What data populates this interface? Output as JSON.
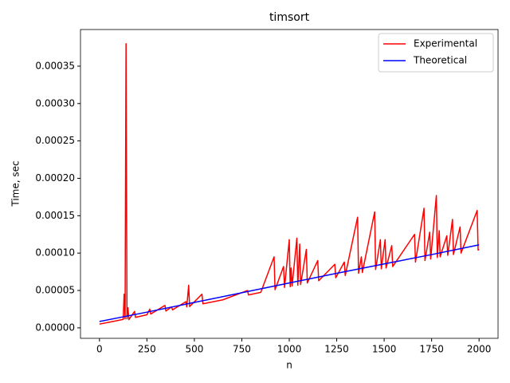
{
  "chart_data": {
    "type": "line",
    "title": "timsort",
    "x_label": "n",
    "y_label": "Time, sec",
    "xlim": [
      -100,
      2100
    ],
    "ylim": [
      -1.4e-05,
      0.000399
    ],
    "xticks": [
      0,
      250,
      500,
      750,
      1000,
      1250,
      1500,
      1750,
      2000
    ],
    "yticks": [
      {
        "value": 0,
        "label": "0.00000"
      },
      {
        "value": 5e-05,
        "label": "0.00005"
      },
      {
        "value": 0.0001,
        "label": "0.00010"
      },
      {
        "value": 0.00015,
        "label": "0.00015"
      },
      {
        "value": 0.0002,
        "label": "0.00020"
      },
      {
        "value": 0.00025,
        "label": "0.00025"
      },
      {
        "value": 0.0003,
        "label": "0.00030"
      },
      {
        "value": 0.00035,
        "label": "0.00035"
      }
    ],
    "legend": "upper right",
    "series": [
      {
        "name": "Experimental",
        "color": "#ff0000",
        "x": [
          0,
          50,
          100,
          125,
          130,
          135,
          140,
          145,
          150,
          155,
          185,
          190,
          250,
          265,
          270,
          345,
          350,
          380,
          385,
          455,
          460,
          470,
          475,
          540,
          545,
          650,
          780,
          785,
          850,
          920,
          925,
          970,
          975,
          1000,
          1005,
          1010,
          1015,
          1040,
          1045,
          1055,
          1060,
          1090,
          1095,
          1150,
          1155,
          1240,
          1245,
          1290,
          1295,
          1360,
          1365,
          1380,
          1385,
          1450,
          1455,
          1480,
          1485,
          1505,
          1510,
          1540,
          1545,
          1660,
          1665,
          1710,
          1715,
          1740,
          1745,
          1775,
          1780,
          1790,
          1795,
          1830,
          1835,
          1860,
          1865,
          1900,
          1905,
          1990,
          1995,
          2000
        ],
        "values": [
          5e-06,
          7.5e-06,
          1e-05,
          1.13e-05,
          4.5e-05,
          1.2e-05,
          0.00038,
          1.2e-05,
          2.7e-05,
          1.1e-05,
          2.2e-05,
          1.4e-05,
          1.75e-05,
          2.5e-05,
          1.85e-05,
          3e-05,
          2.25e-05,
          2.8e-05,
          2.4e-05,
          3.5e-05,
          2.8e-05,
          5.7e-05,
          2.85e-05,
          4.5e-05,
          3.22e-05,
          3.75e-05,
          5e-05,
          4.4e-05,
          4.75e-05,
          9.5e-05,
          5.1e-05,
          8.2e-05,
          5.4e-05,
          0.000118,
          5.5e-05,
          8e-05,
          5.6e-05,
          0.00012,
          5.7e-05,
          0.000112,
          5.8e-05,
          0.000105,
          6e-05,
          9e-05,
          6.3e-05,
          8.5e-05,
          6.7e-05,
          8.8e-05,
          7e-05,
          0.000148,
          7.3e-05,
          9.5e-05,
          7.4e-05,
          0.000155,
          7.8e-05,
          0.000118,
          7.9e-05,
          0.000118,
          8e-05,
          0.00011,
          8.2e-05,
          0.000125,
          8.8e-05,
          0.00016,
          9e-05,
          0.000128,
          9.2e-05,
          0.000177,
          9.4e-05,
          0.00013,
          9.5e-05,
          0.000123,
          9.7e-05,
          0.000145,
          9.8e-05,
          0.000135,
          0.0001,
          0.000157,
          0.000104,
          0.000105
        ]
      },
      {
        "name": "Theoretical",
        "color": "#0000ff",
        "x": [
          0,
          250,
          500,
          750,
          1000,
          1250,
          1500,
          1750,
          2000
        ],
        "values": [
          8.5e-06,
          2.1e-05,
          3.4e-05,
          4.7e-05,
          6e-05,
          7.3e-05,
          8.55e-05,
          9.8e-05,
          0.000111
        ]
      }
    ]
  }
}
